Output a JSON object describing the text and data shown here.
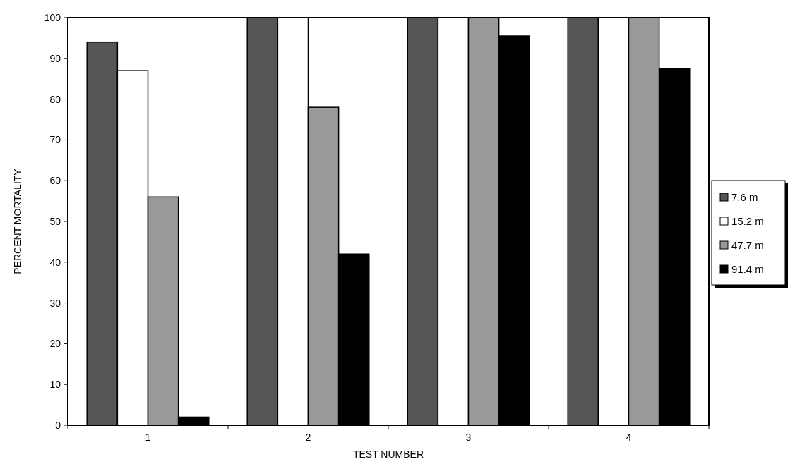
{
  "chart_data": {
    "type": "bar",
    "xlabel": "TEST NUMBER",
    "ylabel": "PERCENT MORTALITY",
    "categories": [
      "1",
      "2",
      "3",
      "4"
    ],
    "series": [
      {
        "name": "7.6 m",
        "color": "#555555",
        "values": [
          94,
          100,
          100,
          100
        ]
      },
      {
        "name": "15.2 m",
        "color": "#ffffff",
        "values": [
          87,
          100,
          100,
          100
        ]
      },
      {
        "name": "47.7 m",
        "color": "#999999",
        "values": [
          56,
          78,
          100,
          100
        ]
      },
      {
        "name": "91.4 m",
        "color": "#000000",
        "values": [
          2,
          42,
          95.5,
          87.5
        ]
      }
    ],
    "ylim": [
      0,
      100
    ],
    "yticks": [
      0,
      10,
      20,
      30,
      40,
      50,
      60,
      70,
      80,
      90,
      100
    ],
    "grid": false,
    "legend": "right"
  }
}
